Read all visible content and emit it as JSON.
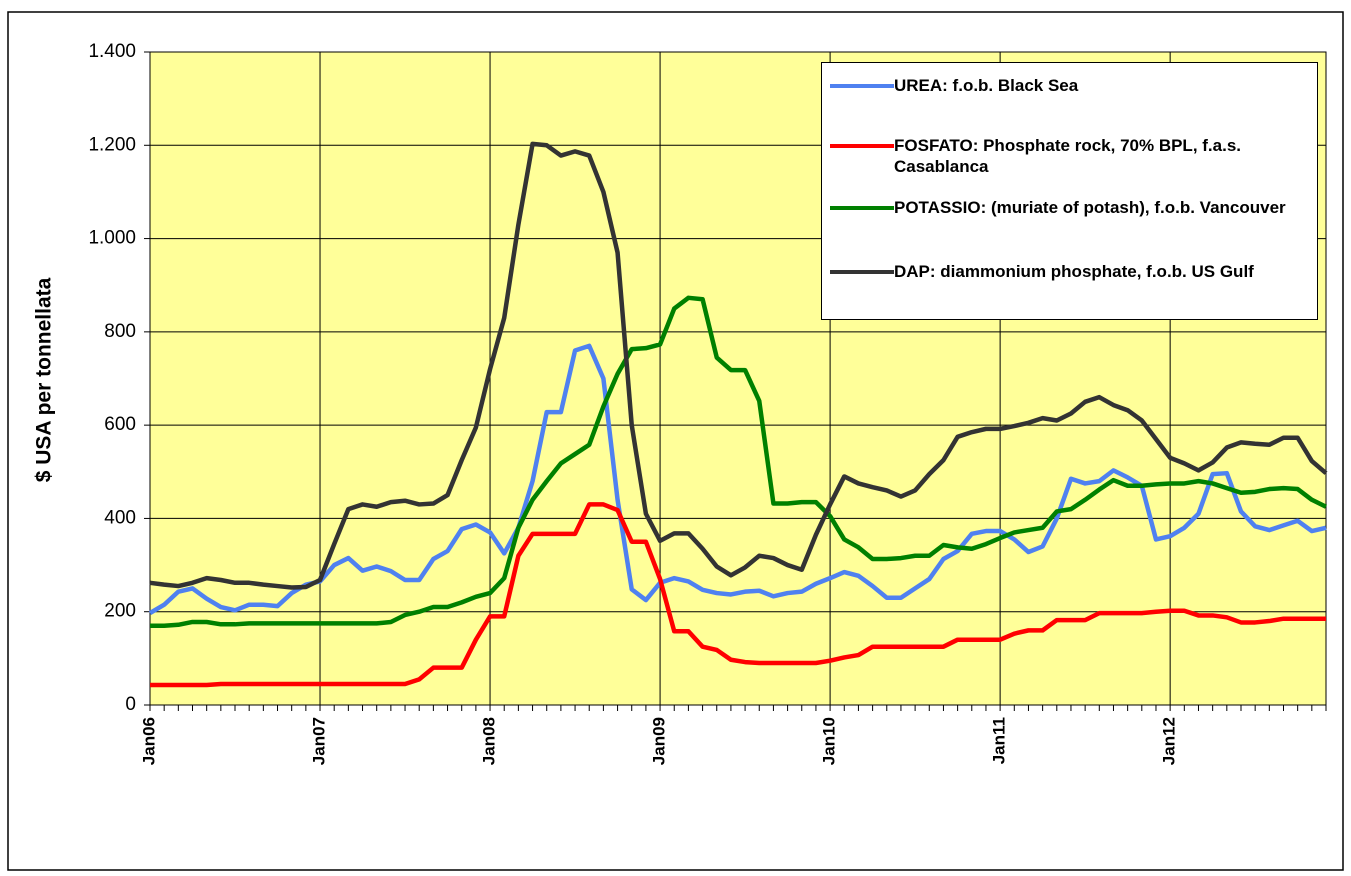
{
  "chart_data": {
    "type": "line",
    "y_label": "$ USA per tonnellata",
    "categories": [
      "Jan06",
      null,
      null,
      null,
      null,
      null,
      null,
      null,
      null,
      null,
      null,
      null,
      "Jan07",
      null,
      null,
      null,
      null,
      null,
      null,
      null,
      null,
      null,
      null,
      null,
      "Jan08",
      null,
      null,
      null,
      null,
      null,
      null,
      null,
      null,
      null,
      null,
      null,
      "Jan09",
      null,
      null,
      null,
      null,
      null,
      null,
      null,
      null,
      null,
      null,
      null,
      "Jan10",
      null,
      null,
      null,
      null,
      null,
      null,
      null,
      null,
      null,
      null,
      null,
      "Jan11",
      null,
      null,
      null,
      null,
      null,
      null,
      null,
      null,
      null,
      null,
      null,
      "Jan12",
      null,
      null,
      null,
      null,
      null,
      null,
      null,
      null,
      null,
      null,
      null
    ],
    "ylim": [
      0,
      1400
    ],
    "yticks": [
      0,
      200,
      400,
      600,
      800,
      {
        "value": 1000,
        "label": "1.000"
      },
      {
        "value": 1200,
        "label": "1.200"
      },
      {
        "value": 1400,
        "label": "1.400"
      }
    ],
    "grid": true,
    "background": "#ffff99",
    "legend": "top-right",
    "series": [
      {
        "name": "UREA:  f.o.b. Black Sea",
        "color": "#4f81f0",
        "values": [
          197,
          215,
          243,
          250,
          228,
          210,
          203,
          215,
          215,
          212,
          240,
          258,
          265,
          300,
          315,
          288,
          297,
          287,
          268,
          268,
          313,
          330,
          377,
          387,
          370,
          325,
          380,
          480,
          628,
          628,
          760,
          770,
          700,
          440,
          248,
          225,
          262,
          272,
          265,
          247,
          240,
          237,
          243,
          245,
          233,
          240,
          243,
          260,
          272,
          285,
          277,
          255,
          230,
          230,
          250,
          270,
          313,
          330,
          367,
          373,
          373,
          355,
          328,
          340,
          400,
          485,
          475,
          480,
          503,
          488,
          470,
          355,
          362,
          380,
          410,
          495,
          497,
          415,
          383,
          375,
          385,
          395,
          373,
          380
        ]
      },
      {
        "name": "FOSFATO: Phosphate rock, 70% BPL, f.a.s. Casablanca",
        "color": "#ff0000",
        "values": [
          43,
          43,
          43,
          43,
          43,
          45,
          45,
          45,
          45,
          45,
          45,
          45,
          45,
          45,
          45,
          45,
          45,
          45,
          45,
          55,
          80,
          80,
          80,
          140,
          190,
          190,
          320,
          367,
          367,
          367,
          367,
          430,
          430,
          418,
          350,
          350,
          270,
          158,
          158,
          125,
          118,
          97,
          92,
          90,
          90,
          90,
          90,
          90,
          95,
          102,
          107,
          125,
          125,
          125,
          125,
          125,
          125,
          140,
          140,
          140,
          140,
          153,
          160,
          160,
          182,
          182,
          182,
          197,
          197,
          197,
          197,
          200,
          202,
          202,
          192,
          192,
          188,
          177,
          177,
          180,
          185,
          185,
          185,
          185
        ]
      },
      {
        "name": "POTASSIO: (muriate of potash), f.o.b. Vancouver",
        "color": "#008000",
        "values": [
          170,
          170,
          172,
          178,
          178,
          173,
          173,
          175,
          175,
          175,
          175,
          175,
          175,
          175,
          175,
          175,
          175,
          178,
          193,
          200,
          210,
          210,
          220,
          232,
          240,
          272,
          380,
          440,
          480,
          518,
          538,
          558,
          640,
          710,
          763,
          765,
          773,
          850,
          873,
          870,
          745,
          718,
          718,
          652,
          432,
          432,
          435,
          435,
          405,
          355,
          338,
          313,
          313,
          315,
          320,
          320,
          343,
          338,
          335,
          345,
          358,
          370,
          375,
          380,
          415,
          420,
          440,
          462,
          482,
          470,
          470,
          473,
          475,
          475,
          480,
          475,
          465,
          455,
          457,
          463,
          465,
          463,
          440,
          425
        ]
      },
      {
        "name": "DAP: diammonium phosphate,  f.o.b. US Gulf",
        "color": "#333333",
        "values": [
          262,
          258,
          255,
          262,
          272,
          268,
          262,
          262,
          258,
          255,
          252,
          253,
          268,
          345,
          420,
          430,
          425,
          435,
          438,
          430,
          432,
          450,
          525,
          595,
          720,
          830,
          1030,
          1203,
          1200,
          1178,
          1187,
          1178,
          1100,
          970,
          600,
          410,
          352,
          368,
          368,
          335,
          297,
          278,
          295,
          320,
          315,
          300,
          290,
          365,
          430,
          490,
          475,
          467,
          460,
          447,
          460,
          495,
          525,
          575,
          585,
          592,
          592,
          598,
          605,
          615,
          610,
          625,
          650,
          660,
          643,
          632,
          610,
          570,
          530,
          518,
          503,
          520,
          552,
          563,
          560,
          558,
          573,
          573,
          523,
          497
        ]
      }
    ]
  }
}
